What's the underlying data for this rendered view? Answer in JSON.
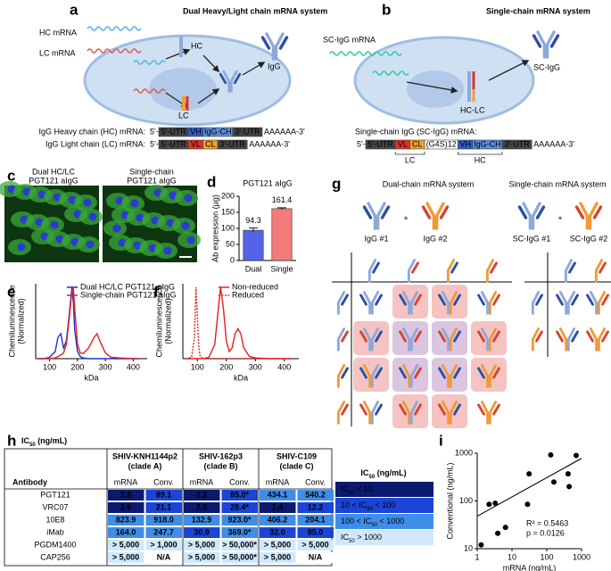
{
  "figure": {
    "a": {
      "label": "a",
      "title": "Dual Heavy/Light chain mRNA system",
      "hc_mrna": "HC mRNA",
      "lc_mrna": "LC mRNA",
      "hc": "HC",
      "lc": "LC",
      "igg": "IgG",
      "constructs": [
        {
          "name": "IgG Heavy chain (HC) mRNA:",
          "start": "5'-",
          "segments": [
            "5'-UTR",
            "VH",
            "IgG-CH",
            "3'-UTR"
          ],
          "colors": [
            "#444444",
            "#2f5bc4",
            "#5b8fd6",
            "#444444"
          ],
          "end": "AAAAAA-3'"
        },
        {
          "name": "IgG Light chain (LC) mRNA:",
          "start": "5'-",
          "segments": [
            "5'-UTR",
            "VL",
            "CL",
            "3'-UTR"
          ],
          "colors": [
            "#444444",
            "#d9342b",
            "#f0a030",
            "#444444"
          ],
          "end": "AAAAAA-3'"
        }
      ]
    },
    "b": {
      "label": "b",
      "title": "Single-chain mRNA system",
      "sc_mrna": "SC-IgG mRNA",
      "hc_lc": "HC-LC",
      "sc_igg": "SC-IgG",
      "constructs": [
        {
          "name": "Single-chain IgG (SC-IgG) mRNA:",
          "start": "5'-",
          "segments": [
            "5'-UTR",
            "VL",
            "CL",
            "(G4S)12",
            "VH",
            "IgG-CH",
            "3'-UTR"
          ],
          "colors": [
            "#444444",
            "#d9342b",
            "#f0a030",
            "#ffffff",
            "#2f5bc4",
            "#5b8fd6",
            "#444444"
          ],
          "end": "AAAAAA-3'",
          "brackets": [
            "LC",
            "HC"
          ]
        }
      ]
    },
    "c": {
      "label": "c",
      "images": [
        [
          "Dual HC/LC",
          "PGT121 aIgG"
        ],
        [
          "Single-chain",
          "PGT121 aIgG"
        ]
      ]
    },
    "g": {
      "label": "g",
      "titles": [
        "Dual-chain mRNA system",
        "Single-chain mRNA system"
      ],
      "dual": {
        "items": [
          "IgG #1",
          "IgG #2"
        ],
        "plus": "+"
      },
      "single": {
        "items": [
          "SC-IgG #1",
          "SC-IgG #2"
        ],
        "plus": "+"
      },
      "colors": {
        "chain_1": {
          "hc": "#8ea9d8",
          "lc": "#2d4fa3"
        },
        "chain_2": {
          "hc": "#ef9a3a",
          "lc": "#d6452d"
        }
      }
    },
    "h": {
      "label": "h",
      "title": [
        "IC",
        "50",
        " (ng/mL)"
      ],
      "table": {
        "antibody_header": "Antibody",
        "groups": [
          [
            "SHIV-KNH1144p2",
            "(clade A)"
          ],
          [
            "SHIV-162p3",
            "(clade B)"
          ],
          [
            "SHIV-C109",
            "(clade C)"
          ]
        ],
        "subheaders": [
          "mRNA",
          "Conv."
        ],
        "rows": [
          {
            "name": "PGT121",
            "cells": [
              "3.8",
              "89.1",
              "2.2",
              "85.0*",
              "434.1",
              "540.2"
            ],
            "levels": [
              0,
              1,
              0,
              1,
              2,
              2
            ]
          },
          {
            "name": "VRC07",
            "cells": [
              "3.9",
              "21.1",
              "7.0",
              "28.4*",
              "1.4",
              "12.2"
            ],
            "levels": [
              0,
              1,
              0,
              1,
              0,
              1
            ]
          },
          {
            "name": "10E8",
            "cells": [
              "823.9",
              "918.0",
              "132.9",
              "923.0*",
              "406.2",
              "204.1"
            ],
            "levels": [
              2,
              2,
              2,
              2,
              2,
              2
            ]
          },
          {
            "name": "iMab",
            "cells": [
              "164.0",
              "247.7",
              "30.9",
              "369.0*",
              "32.0",
              "85.0"
            ],
            "levels": [
              2,
              2,
              1,
              2,
              1,
              1
            ]
          },
          {
            "name": "PGDM1400",
            "cells": [
              "> 5,000",
              "> 1,000",
              "> 5,000",
              "> 50,000*",
              "> 5,000",
              "> 5,000"
            ],
            "levels": [
              3,
              3,
              3,
              3,
              3,
              3
            ]
          },
          {
            "name": "CAP256",
            "cells": [
              "> 5,000",
              "N/A",
              "> 5,000",
              "> 50,000*",
              "> 5,000",
              "N/A"
            ],
            "levels": [
              3,
              null,
              3,
              3,
              3,
              null
            ]
          }
        ]
      },
      "legend": {
        "title": [
          "IC",
          "50",
          " (ng/mL)"
        ],
        "items": [
          {
            "parts": [
              "IC",
              "50",
              " < 10"
            ],
            "color": "#0b1a6e",
            "text_color": "#ffffff"
          },
          {
            "parts": [
              "10 < IC",
              "50",
              " < 100"
            ],
            "color": "#1c44d6",
            "text_color": "#ffffff"
          },
          {
            "parts": [
              "100 < IC",
              "50",
              " < 1000"
            ],
            "color": "#3f8de8",
            "text_color": "#000000"
          },
          {
            "parts": [
              "IC",
              "50",
              " > 1000"
            ],
            "color": "#cfe8fb",
            "text_color": "#000000"
          }
        ]
      }
    }
  },
  "chart_data": [
    {
      "type": "bar",
      "label": "d",
      "title": "PGT121 aIgG",
      "y_label": "Ab expression (µg)",
      "categories": [
        "Dual",
        "Single"
      ],
      "values": [
        94.3,
        161.4
      ],
      "errors": [
        7,
        3
      ],
      "colors": [
        "#5563e8",
        "#f47b7b"
      ],
      "ylim": [
        0,
        200
      ],
      "yticks": [
        0,
        50,
        100,
        150,
        200
      ]
    },
    {
      "type": "line",
      "label": "e",
      "x_label": "kDa",
      "y_label": [
        "Chemiluminescence",
        "(Normalized)"
      ],
      "x": [
        60,
        80,
        100,
        120,
        130,
        140,
        150,
        160,
        170,
        180,
        185,
        190,
        200,
        210,
        220,
        240,
        260,
        270,
        280,
        300,
        320,
        350,
        400,
        420
      ],
      "series": [
        {
          "name": "Dual HC/LC PGT121 aIgG",
          "color": "#1f2fd6",
          "values": [
            0,
            0,
            0.02,
            0.1,
            0.3,
            0.35,
            0.15,
            0.25,
            0.6,
            1.0,
            0.8,
            0.4,
            0.1,
            0.03,
            0.01,
            0,
            0,
            0,
            0,
            0,
            0,
            0,
            0,
            0
          ]
        },
        {
          "name": "Single-chain PGT121 aIgG",
          "color": "#e02020",
          "values": [
            0,
            0,
            0,
            0.01,
            0.03,
            0.05,
            0.08,
            0.2,
            0.55,
            0.95,
            1.0,
            0.7,
            0.2,
            0.08,
            0.07,
            0.15,
            0.3,
            0.35,
            0.25,
            0.08,
            0.02,
            0.01,
            0,
            0
          ]
        }
      ],
      "xlim": [
        50,
        450
      ],
      "xticks": [
        100,
        200,
        300,
        400
      ],
      "ylim": [
        0,
        1.05
      ],
      "legend": "upper right"
    },
    {
      "type": "line",
      "label": "f",
      "x_label": "kDa",
      "y_label": [
        "Chemiluminescence",
        "(Normalized)"
      ],
      "x": [
        60,
        80,
        90,
        95,
        100,
        105,
        110,
        120,
        140,
        160,
        170,
        180,
        190,
        200,
        210,
        220,
        230,
        240,
        250,
        260,
        280,
        300,
        350,
        420
      ],
      "series": [
        {
          "name": "Non-reduced",
          "color": "#e02020",
          "dash": false,
          "values": [
            0,
            0,
            0,
            0,
            0,
            0,
            0,
            0,
            0.02,
            0.2,
            0.6,
            1.0,
            0.7,
            0.25,
            0.1,
            0.15,
            0.35,
            0.42,
            0.35,
            0.15,
            0.03,
            0.01,
            0,
            0
          ]
        },
        {
          "name": "Reduced",
          "color": "#e02020",
          "dash": true,
          "values": [
            0,
            0.02,
            0.3,
            1.0,
            0.6,
            0.15,
            0.03,
            0,
            0,
            0,
            0,
            0,
            0,
            0,
            0,
            0,
            0,
            0,
            0,
            0,
            0,
            0,
            0,
            0
          ]
        }
      ],
      "xlim": [
        50,
        450
      ],
      "xticks": [
        100,
        200,
        300,
        400
      ],
      "ylim": [
        0,
        1.05
      ],
      "legend": "upper right"
    },
    {
      "type": "scatter",
      "label": "i",
      "x_label": "mRNA (ng/mL)",
      "y_label": "Conventional (ng/mL)",
      "x": [
        1.3,
        2.2,
        3.3,
        3.9,
        6.5,
        28,
        31,
        130,
        160,
        410,
        440,
        700
      ],
      "values": [
        12,
        85,
        90,
        21,
        28,
        85,
        370,
        920,
        250,
        370,
        200,
        900
      ],
      "color": "#000000",
      "xlim": [
        1,
        1000
      ],
      "ylim": [
        10,
        1000
      ],
      "xticks": [
        1,
        10,
        100,
        1000
      ],
      "yticks": [
        10,
        100,
        1000
      ],
      "log_x": true,
      "log_y": true,
      "fit": {
        "x": [
          1,
          1000
        ],
        "y": [
          48,
          780
        ]
      },
      "annotations": [
        "R² = 0.5463",
        "p = 0.0126"
      ]
    }
  ]
}
